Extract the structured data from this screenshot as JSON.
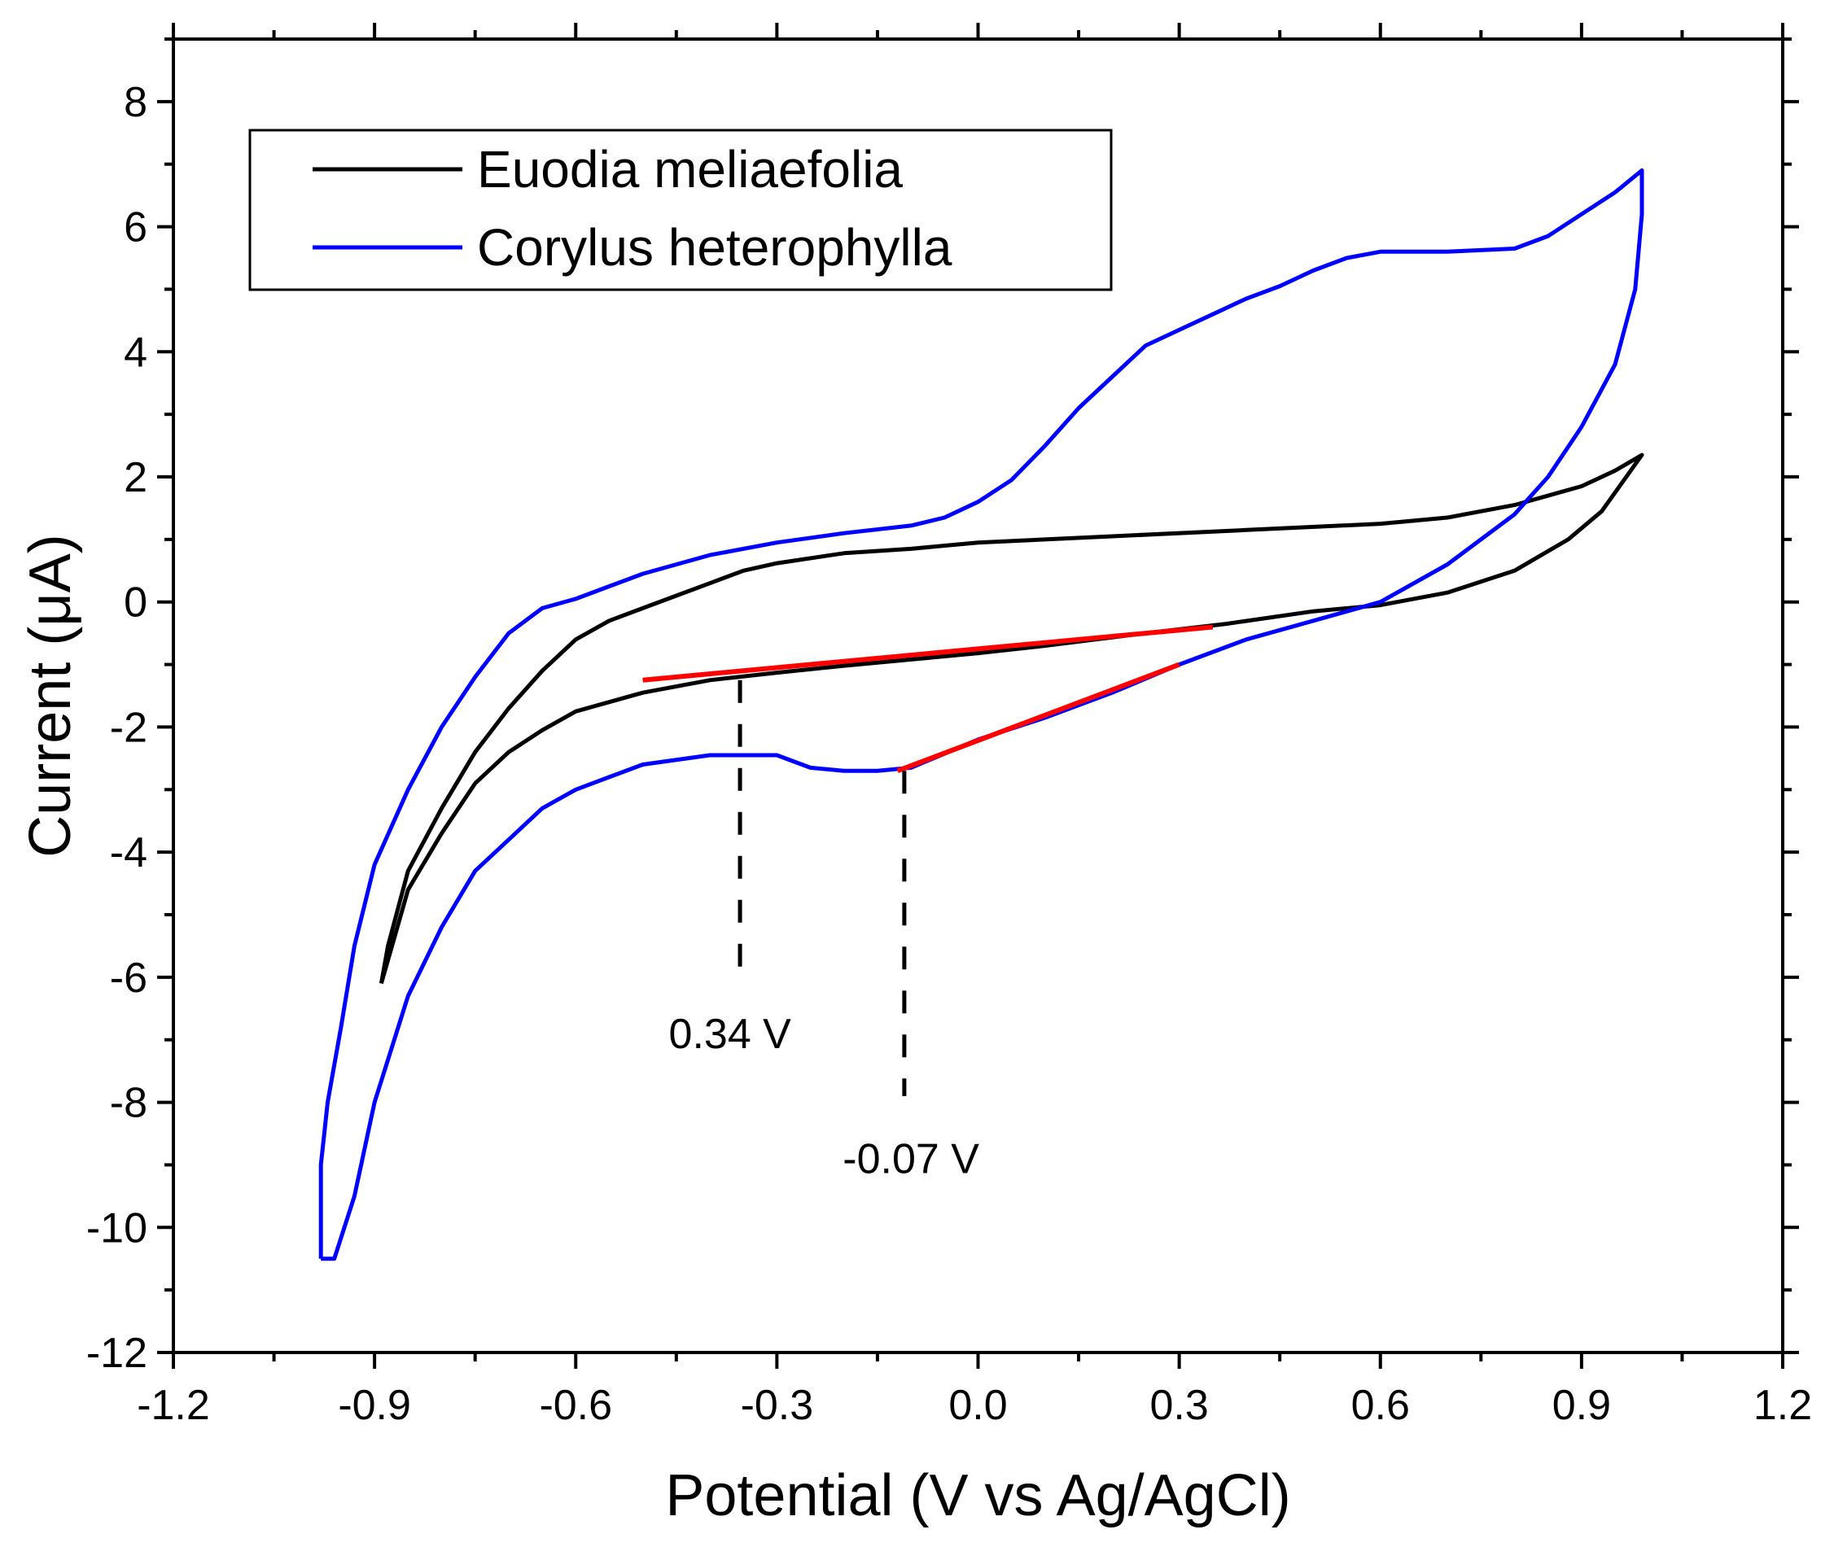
{
  "chart_data": {
    "type": "line",
    "title": "",
    "xlabel": "Potential (V vs Ag/AgCl)",
    "ylabel": "Current (μA)",
    "xlim": [
      -1.2,
      1.2
    ],
    "ylim": [
      -12,
      9
    ],
    "xticks": [
      -1.2,
      -0.9,
      -0.6,
      -0.3,
      0.0,
      0.3,
      0.6,
      0.9,
      1.2
    ],
    "xtick_labels": [
      "-1.2",
      "-0.9",
      "-0.6",
      "-0.3",
      "0.0",
      "0.3",
      "0.6",
      "0.9",
      "1.2"
    ],
    "yticks": [
      -12,
      -10,
      -8,
      -6,
      -4,
      -2,
      0,
      2,
      4,
      6,
      8
    ],
    "ytick_labels": [
      "-12",
      "-10",
      "-8",
      "-6",
      "-4",
      "-2",
      "0",
      "2",
      "4",
      "6",
      "8"
    ],
    "legend_position": "top-left",
    "series": [
      {
        "name": "Euodia meliaefolia",
        "color": "#000000",
        "points": [
          [
            -0.89,
            -6.1
          ],
          [
            -0.88,
            -5.5
          ],
          [
            -0.85,
            -4.3
          ],
          [
            -0.8,
            -3.3
          ],
          [
            -0.75,
            -2.4
          ],
          [
            -0.7,
            -1.7
          ],
          [
            -0.65,
            -1.1
          ],
          [
            -0.6,
            -0.6
          ],
          [
            -0.55,
            -0.3
          ],
          [
            -0.5,
            -0.1
          ],
          [
            -0.45,
            0.1
          ],
          [
            -0.4,
            0.3
          ],
          [
            -0.35,
            0.5
          ],
          [
            -0.3,
            0.62
          ],
          [
            -0.2,
            0.78
          ],
          [
            -0.1,
            0.85
          ],
          [
            0.0,
            0.95
          ],
          [
            0.2,
            1.05
          ],
          [
            0.4,
            1.15
          ],
          [
            0.6,
            1.25
          ],
          [
            0.7,
            1.35
          ],
          [
            0.8,
            1.55
          ],
          [
            0.9,
            1.85
          ],
          [
            0.95,
            2.1
          ],
          [
            0.99,
            2.35
          ],
          [
            0.96,
            1.9
          ],
          [
            0.93,
            1.45
          ],
          [
            0.88,
            1.0
          ],
          [
            0.8,
            0.5
          ],
          [
            0.7,
            0.15
          ],
          [
            0.6,
            -0.05
          ],
          [
            0.5,
            -0.15
          ],
          [
            0.37,
            -0.35
          ],
          [
            0.25,
            -0.5
          ],
          [
            0.1,
            -0.7
          ],
          [
            0.0,
            -0.82
          ],
          [
            -0.1,
            -0.92
          ],
          [
            -0.2,
            -1.02
          ],
          [
            -0.3,
            -1.13
          ],
          [
            -0.4,
            -1.25
          ],
          [
            -0.5,
            -1.45
          ],
          [
            -0.55,
            -1.6
          ],
          [
            -0.6,
            -1.75
          ],
          [
            -0.65,
            -2.05
          ],
          [
            -0.7,
            -2.4
          ],
          [
            -0.75,
            -2.9
          ],
          [
            -0.8,
            -3.7
          ],
          [
            -0.85,
            -4.6
          ],
          [
            -0.89,
            -6.1
          ]
        ]
      },
      {
        "name": "Corylus heterophylla",
        "color": "#0000ff",
        "points": [
          [
            -0.98,
            -10.5
          ],
          [
            -0.98,
            -9.0
          ],
          [
            -0.97,
            -8.0
          ],
          [
            -0.95,
            -6.8
          ],
          [
            -0.93,
            -5.5
          ],
          [
            -0.9,
            -4.2
          ],
          [
            -0.85,
            -3.0
          ],
          [
            -0.8,
            -2.0
          ],
          [
            -0.75,
            -1.2
          ],
          [
            -0.7,
            -0.5
          ],
          [
            -0.65,
            -0.1
          ],
          [
            -0.6,
            0.05
          ],
          [
            -0.55,
            0.25
          ],
          [
            -0.5,
            0.45
          ],
          [
            -0.45,
            0.6
          ],
          [
            -0.4,
            0.75
          ],
          [
            -0.3,
            0.95
          ],
          [
            -0.2,
            1.1
          ],
          [
            -0.1,
            1.22
          ],
          [
            -0.05,
            1.35
          ],
          [
            0.0,
            1.6
          ],
          [
            0.05,
            1.95
          ],
          [
            0.1,
            2.5
          ],
          [
            0.15,
            3.1
          ],
          [
            0.2,
            3.6
          ],
          [
            0.25,
            4.1
          ],
          [
            0.3,
            4.35
          ],
          [
            0.35,
            4.6
          ],
          [
            0.4,
            4.85
          ],
          [
            0.45,
            5.05
          ],
          [
            0.5,
            5.3
          ],
          [
            0.55,
            5.5
          ],
          [
            0.6,
            5.6
          ],
          [
            0.7,
            5.6
          ],
          [
            0.8,
            5.65
          ],
          [
            0.85,
            5.85
          ],
          [
            0.9,
            6.2
          ],
          [
            0.95,
            6.55
          ],
          [
            0.99,
            6.9
          ],
          [
            0.99,
            6.2
          ],
          [
            0.98,
            5.0
          ],
          [
            0.95,
            3.8
          ],
          [
            0.9,
            2.8
          ],
          [
            0.85,
            2.0
          ],
          [
            0.8,
            1.4
          ],
          [
            0.7,
            0.6
          ],
          [
            0.6,
            0.0
          ],
          [
            0.5,
            -0.3
          ],
          [
            0.4,
            -0.6
          ],
          [
            0.3,
            -1.0
          ],
          [
            0.2,
            -1.45
          ],
          [
            0.1,
            -1.85
          ],
          [
            0.0,
            -2.2
          ],
          [
            -0.1,
            -2.65
          ],
          [
            -0.15,
            -2.7
          ],
          [
            -0.2,
            -2.7
          ],
          [
            -0.25,
            -2.65
          ],
          [
            -0.3,
            -2.45
          ],
          [
            -0.4,
            -2.45
          ],
          [
            -0.5,
            -2.6
          ],
          [
            -0.55,
            -2.8
          ],
          [
            -0.6,
            -3.0
          ],
          [
            -0.65,
            -3.3
          ],
          [
            -0.7,
            -3.8
          ],
          [
            -0.75,
            -4.3
          ],
          [
            -0.8,
            -5.2
          ],
          [
            -0.85,
            -6.3
          ],
          [
            -0.9,
            -8.0
          ],
          [
            -0.93,
            -9.5
          ],
          [
            -0.96,
            -10.5
          ],
          [
            -0.98,
            -10.5
          ]
        ]
      }
    ],
    "baselines": [
      {
        "name": "baseline-euodia",
        "color": "#ff0000",
        "points": [
          [
            -0.5,
            -1.25
          ],
          [
            0.35,
            -0.4
          ]
        ]
      },
      {
        "name": "baseline-corylus",
        "color": "#ff0000",
        "points": [
          [
            -0.12,
            -2.7
          ],
          [
            0.3,
            -1.0
          ]
        ]
      }
    ],
    "markers": [
      {
        "name": "marker-0.34",
        "x": -0.355,
        "y_top": -1.25,
        "y_bottom": -6.1,
        "label": "0.34 V",
        "label_x": -0.37,
        "label_y": -6.9
      },
      {
        "name": "marker-minus-0.07",
        "x": -0.11,
        "y_top": -2.7,
        "y_bottom": -7.9,
        "label": "-0.07 V",
        "label_x": -0.1,
        "label_y": -8.9
      }
    ]
  }
}
